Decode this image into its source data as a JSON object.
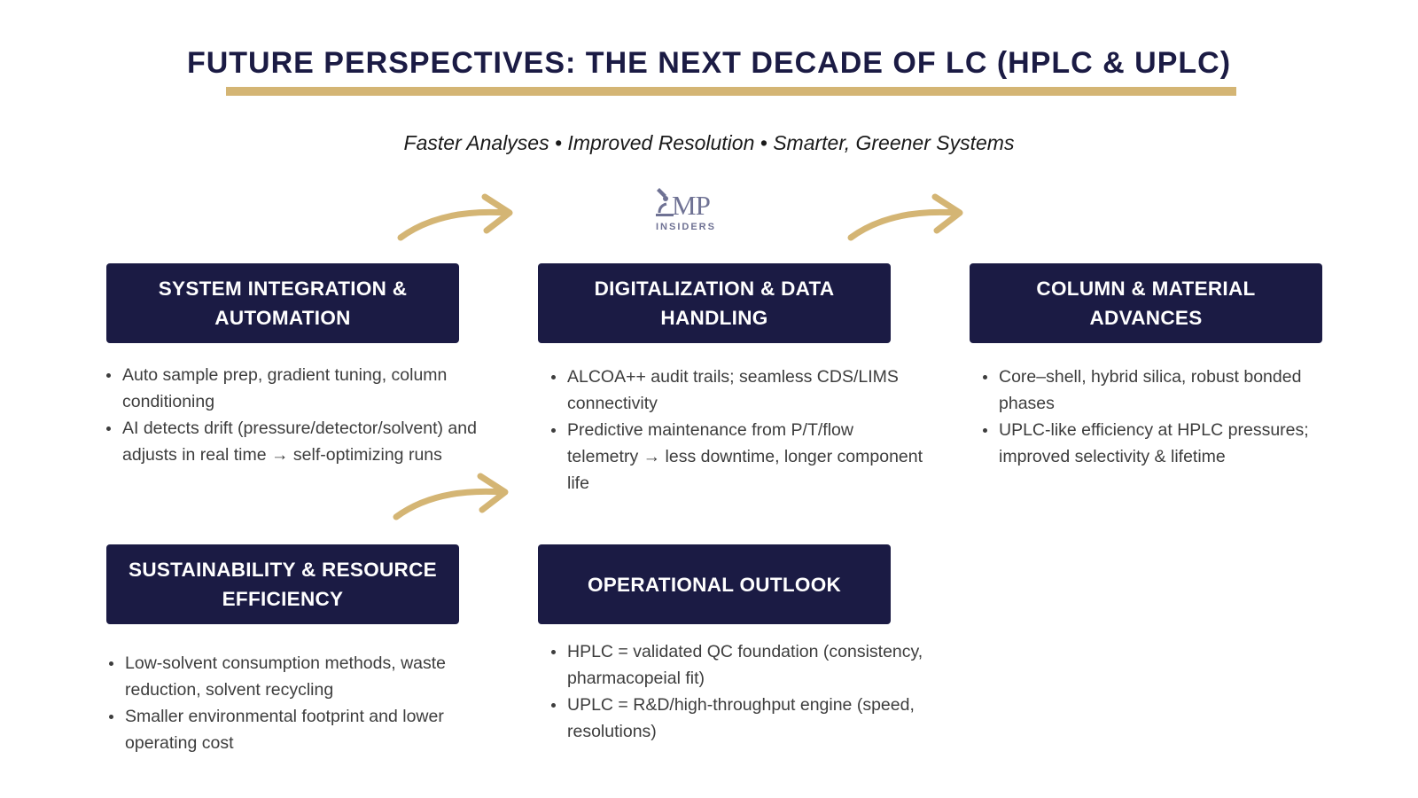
{
  "header": {
    "title": "FUTURE PERSPECTIVES: THE NEXT DECADE OF LC (HPLC & UPLC)",
    "subtitle": "Faster Analyses • Improved Resolution • Smarter, Greener Systems"
  },
  "logo": {
    "text": "MP",
    "subtext": "INSIDERS"
  },
  "sections": [
    {
      "title": "SYSTEM INTEGRATION & AUTOMATION",
      "bullets": [
        "Auto sample prep, gradient tuning, column conditioning",
        "AI detects drift (pressure/detector/solvent) and adjusts in real time → self-optimizing runs"
      ]
    },
    {
      "title": "DIGITALIZATION & DATA HANDLING",
      "bullets": [
        "ALCOA++ audit trails; seamless CDS/LIMS connectivity",
        "Predictive maintenance from P/T/flow telemetry → less downtime, longer component life"
      ]
    },
    {
      "title": "COLUMN & MATERIAL ADVANCES",
      "bullets": [
        "Core–shell, hybrid silica, robust bonded phases",
        "UPLC-like efficiency at HPLC pressures; improved selectivity & lifetime"
      ]
    },
    {
      "title": "SUSTAINABILITY & RESOURCE EFFICIENCY",
      "bullets": [
        "Low-solvent consumption methods, waste reduction, solvent recycling",
        "Smaller environmental footprint and lower operating cost"
      ]
    },
    {
      "title": "OPERATIONAL OUTLOOK",
      "bullets": [
        "HPLC = validated QC foundation (consistency, pharmacopeial fit)",
        "UPLC = R&D/high-throughput engine (speed, resolutions)"
      ]
    }
  ],
  "colors": {
    "navy": "#1b1b44",
    "gold": "#d4b574",
    "logo": "#6f7294"
  },
  "icons": [
    "curved-arrow-icon",
    "microscope-logo-icon"
  ]
}
